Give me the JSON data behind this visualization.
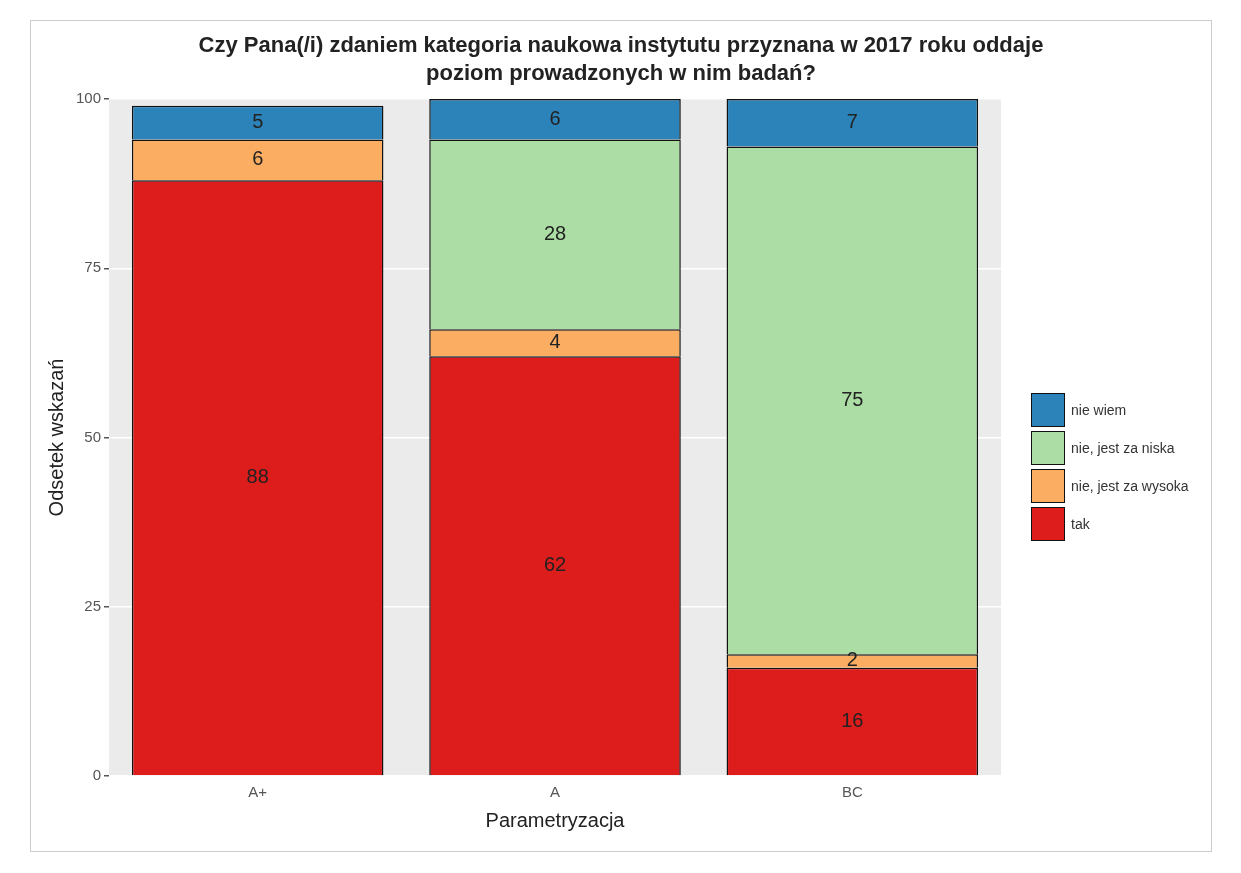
{
  "chart_data": {
    "type": "bar",
    "title": "Czy Pana(/i) zdaniem kategoria naukowa instytutu przyznana w 2017 roku oddaje poziom prowadzonych w nim badań?",
    "xlabel": "Parametryzacja",
    "ylabel": "Odsetek wskazań",
    "categories": [
      "A+",
      "A",
      "BC"
    ],
    "series": [
      {
        "name": "tak",
        "color": "#dd1c1c",
        "values": [
          88,
          62,
          16
        ]
      },
      {
        "name": "nie, jest za wysoka",
        "color": "#fbae61",
        "values": [
          6,
          4,
          2
        ]
      },
      {
        "name": "nie, jest za niska",
        "color": "#abdda4",
        "values": [
          null,
          28,
          75
        ]
      },
      {
        "name": "nie wiem",
        "color": "#2b83ba",
        "values": [
          5,
          6,
          7
        ]
      }
    ],
    "stacked": true,
    "ylim": [
      0,
      100
    ],
    "yticks": [
      0,
      25,
      50,
      75,
      100
    ],
    "grid": "y",
    "legend": "right",
    "data_labels": true
  }
}
